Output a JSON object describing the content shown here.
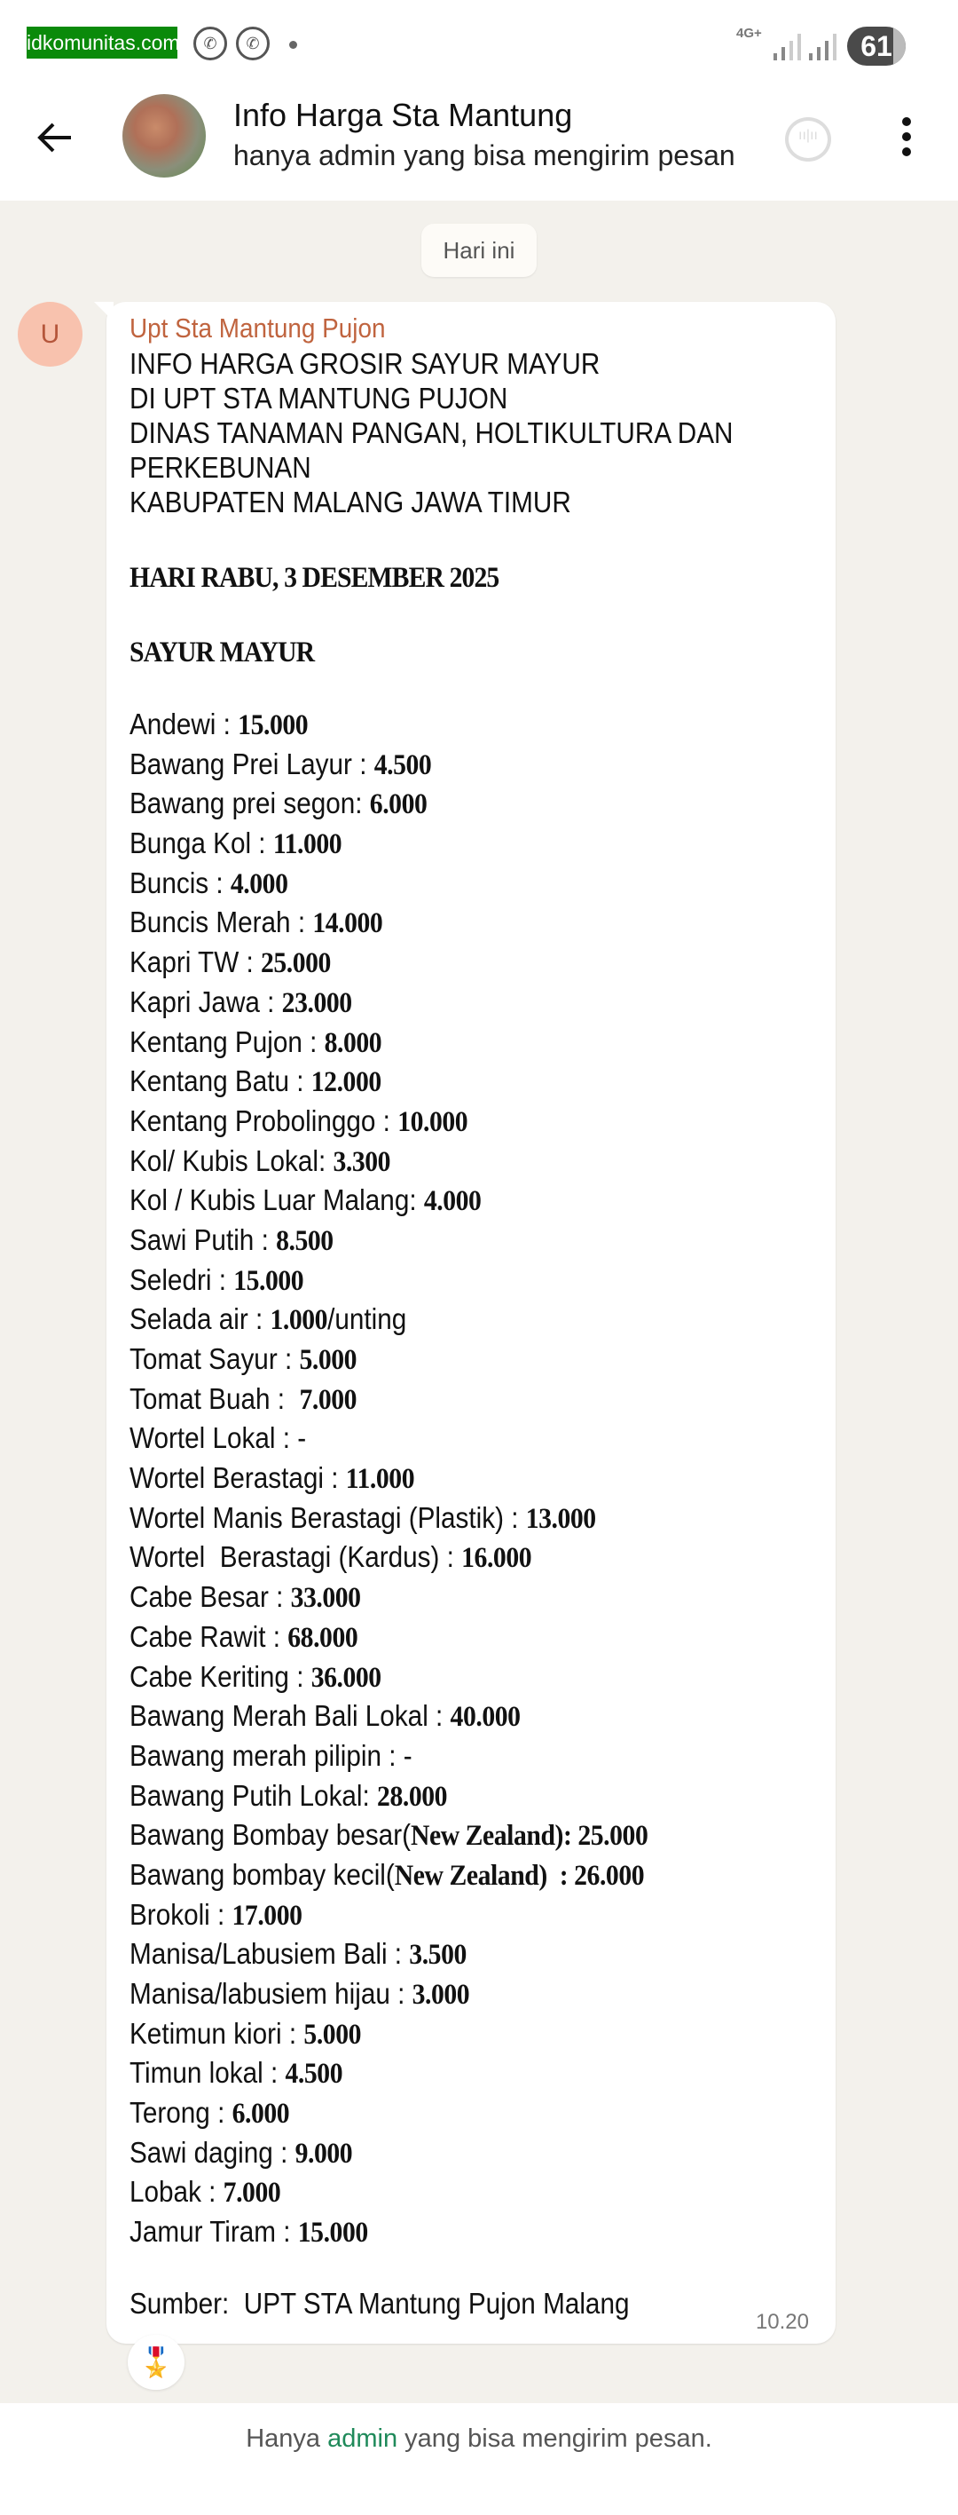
{
  "status_bar": {
    "watermark": "idkomunitas.com",
    "network": "4G+",
    "battery": "61"
  },
  "header": {
    "title": "Info Harga Sta Mantung",
    "subtitle": "hanya admin yang bisa mengirim pesan"
  },
  "chat": {
    "day_label": "Hari ini",
    "message": {
      "sender_initial": "U",
      "sender": "Upt Sta Mantung Pujon",
      "heading_lines": [
        "INFO HARGA GROSIR SAYUR MAYUR",
        "DI UPT STA MANTUNG PUJON",
        "DINAS TANAMAN PANGAN, HOLTIKULTURA DAN",
        "PERKEBUNAN",
        "KABUPATEN MALANG JAWA TIMUR"
      ],
      "date_line": "HARI RABU, 3 DESEMBER 2025",
      "section": "SAYUR MAYUR",
      "items": [
        {
          "label": "Andewi : ",
          "value": "15.000"
        },
        {
          "label": "Bawang Prei Layur : ",
          "value": "4.500"
        },
        {
          "label": "Bawang prei segon: ",
          "value": "6.000"
        },
        {
          "label": "Bunga Kol : ",
          "value": "11.000"
        },
        {
          "label": "Buncis : ",
          "value": "4.000"
        },
        {
          "label": "Buncis Merah : ",
          "value": "14.000"
        },
        {
          "label": "Kapri TW : ",
          "value": "25.000"
        },
        {
          "label": "Kapri Jawa : ",
          "value": "23.000"
        },
        {
          "label": "Kentang Pujon : ",
          "value": "8.000"
        },
        {
          "label": "Kentang Batu : ",
          "value": "12.000"
        },
        {
          "label": "Kentang Probolinggo : ",
          "value": "10.000"
        },
        {
          "label": "Kol/ Kubis Lokal: ",
          "value": "3.300"
        },
        {
          "label": "Kol / Kubis Luar Malang: ",
          "value": "4.000"
        },
        {
          "label": "Sawi Putih : ",
          "value": "8.500"
        },
        {
          "label": "Seledri : ",
          "value": "15.000"
        },
        {
          "label": "Selada air : ",
          "value": "1.000",
          "suffix": "/unting"
        },
        {
          "label": "Tomat Sayur : ",
          "value": "5.000"
        },
        {
          "label": "Tomat Buah :  ",
          "value": "7.000"
        },
        {
          "label": "Wortel Lokal : -",
          "value": ""
        },
        {
          "label": "Wortel Berastagi : ",
          "value": "11.000"
        },
        {
          "label": "Wortel Manis Berastagi (Plastik) : ",
          "value": "13.000"
        },
        {
          "label": "Wortel  Berastagi (Kardus) : ",
          "value": "16.000"
        },
        {
          "label": "Cabe Besar : ",
          "value": "33.000"
        },
        {
          "label": "Cabe Rawit : ",
          "value": "68.000"
        },
        {
          "label": "Cabe Keriting : ",
          "value": "36.000"
        },
        {
          "label": "Bawang Merah Bali Lokal : ",
          "value": "40.000"
        },
        {
          "label": "Bawang merah pilipin : -",
          "value": ""
        },
        {
          "label": "Bawang Putih Lokal: ",
          "value": "28.000"
        },
        {
          "label": "Bawang Bombay besar(",
          "value": "New Zealand): 25.000"
        },
        {
          "label": "Bawang bombay kecil(",
          "value": "New Zealand)  : 26.000"
        },
        {
          "label": "Brokoli : ",
          "value": "17.000"
        },
        {
          "label": "Manisa/Labusiem Bali : ",
          "value": "3.500"
        },
        {
          "label": "Manisa/labusiem hijau : ",
          "value": "3.000"
        },
        {
          "label": "Ketimun kiori : ",
          "value": "5.000"
        },
        {
          "label": "Timun lokal : ",
          "value": "4.500"
        },
        {
          "label": "Terong : ",
          "value": "6.000"
        },
        {
          "label": "Sawi daging : ",
          "value": "9.000"
        },
        {
          "label": "Lobak : ",
          "value": "7.000"
        },
        {
          "label": "Jamur Tiram : ",
          "value": "15.000"
        }
      ],
      "source": "Sumber:  UPT STA Mantung Pujon Malang",
      "time": "10.20",
      "reaction": "🎖️"
    }
  },
  "footer": {
    "before": "Hanya ",
    "highlight": "admin",
    "after": " yang bisa mengirim pesan."
  },
  "colors": {
    "sender": "#c0643f",
    "admin_link": "#1f8a5a",
    "chat_bg": "#f3f1ec",
    "watermark_bg": "#0a8a0a"
  }
}
